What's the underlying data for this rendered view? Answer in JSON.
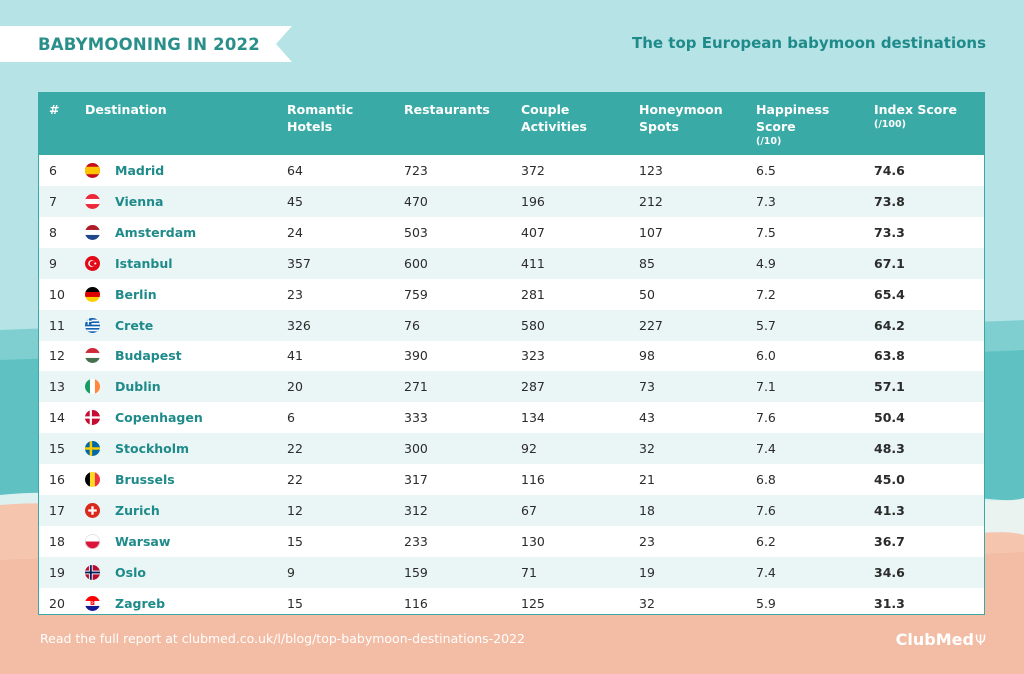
{
  "header": {
    "banner_title": "BABYMOONING IN 2022",
    "subtitle": "The top European babymoon destinations"
  },
  "colors": {
    "accent": "#3aaaa6",
    "sky": "#b6e4e6",
    "sea": "#5fc1c2",
    "sand": "#f5c5ae",
    "destination_text": "#1f8a8a"
  },
  "chart_data": {
    "type": "table",
    "columns": [
      {
        "label": "#",
        "unit": ""
      },
      {
        "label": "Destination",
        "unit": ""
      },
      {
        "label": "Romantic Hotels",
        "unit": ""
      },
      {
        "label": "Restaurants",
        "unit": ""
      },
      {
        "label": "Couple Activities",
        "unit": ""
      },
      {
        "label": "Honeymoon Spots",
        "unit": ""
      },
      {
        "label": "Happiness Score",
        "unit": "(/10)"
      },
      {
        "label": "Index Score",
        "unit": "(/100)"
      }
    ],
    "rows": [
      {
        "rank": "6",
        "destination": "Madrid",
        "flag": "spain-flag-icon",
        "hotels": "64",
        "restaurants": "723",
        "activities": "372",
        "spots": "123",
        "happiness": "6.5",
        "index": "74.6"
      },
      {
        "rank": "7",
        "destination": "Vienna",
        "flag": "austria-flag-icon",
        "hotels": "45",
        "restaurants": "470",
        "activities": "196",
        "spots": "212",
        "happiness": "7.3",
        "index": "73.8"
      },
      {
        "rank": "8",
        "destination": "Amsterdam",
        "flag": "netherlands-flag-icon",
        "hotels": "24",
        "restaurants": "503",
        "activities": "407",
        "spots": "107",
        "happiness": "7.5",
        "index": "73.3"
      },
      {
        "rank": "9",
        "destination": "Istanbul",
        "flag": "turkey-flag-icon",
        "hotels": "357",
        "restaurants": "600",
        "activities": "411",
        "spots": "85",
        "happiness": "4.9",
        "index": "67.1"
      },
      {
        "rank": "10",
        "destination": "Berlin",
        "flag": "germany-flag-icon",
        "hotels": "23",
        "restaurants": "759",
        "activities": "281",
        "spots": "50",
        "happiness": "7.2",
        "index": "65.4"
      },
      {
        "rank": "11",
        "destination": "Crete",
        "flag": "greece-flag-icon",
        "hotels": "326",
        "restaurants": "76",
        "activities": "580",
        "spots": "227",
        "happiness": "5.7",
        "index": "64.2"
      },
      {
        "rank": "12",
        "destination": "Budapest",
        "flag": "hungary-flag-icon",
        "hotels": "41",
        "restaurants": "390",
        "activities": "323",
        "spots": "98",
        "happiness": "6.0",
        "index": "63.8"
      },
      {
        "rank": "13",
        "destination": "Dublin",
        "flag": "ireland-flag-icon",
        "hotels": "20",
        "restaurants": "271",
        "activities": "287",
        "spots": "73",
        "happiness": "7.1",
        "index": "57.1"
      },
      {
        "rank": "14",
        "destination": "Copenhagen",
        "flag": "denmark-flag-icon",
        "hotels": "6",
        "restaurants": "333",
        "activities": "134",
        "spots": "43",
        "happiness": "7.6",
        "index": "50.4"
      },
      {
        "rank": "15",
        "destination": "Stockholm",
        "flag": "sweden-flag-icon",
        "hotels": "22",
        "restaurants": "300",
        "activities": "92",
        "spots": "32",
        "happiness": "7.4",
        "index": "48.3"
      },
      {
        "rank": "16",
        "destination": "Brussels",
        "flag": "belgium-flag-icon",
        "hotels": "22",
        "restaurants": "317",
        "activities": "116",
        "spots": "21",
        "happiness": "6.8",
        "index": "45.0"
      },
      {
        "rank": "17",
        "destination": "Zurich",
        "flag": "switzerland-flag-icon",
        "hotels": "12",
        "restaurants": "312",
        "activities": "67",
        "spots": "18",
        "happiness": "7.6",
        "index": "41.3"
      },
      {
        "rank": "18",
        "destination": "Warsaw",
        "flag": "poland-flag-icon",
        "hotels": "15",
        "restaurants": "233",
        "activities": "130",
        "spots": "23",
        "happiness": "6.2",
        "index": "36.7"
      },
      {
        "rank": "19",
        "destination": "Oslo",
        "flag": "norway-flag-icon",
        "hotels": "9",
        "restaurants": "159",
        "activities": "71",
        "spots": "19",
        "happiness": "7.4",
        "index": "34.6"
      },
      {
        "rank": "20",
        "destination": "Zagreb",
        "flag": "croatia-flag-icon",
        "hotels": "15",
        "restaurants": "116",
        "activities": "125",
        "spots": "32",
        "happiness": "5.9",
        "index": "31.3"
      }
    ]
  },
  "footer": {
    "source_text": "Read the full report at clubmed.co.uk/l/blog/top-babymoon-destinations-2022",
    "logo_text": "ClubMed"
  }
}
